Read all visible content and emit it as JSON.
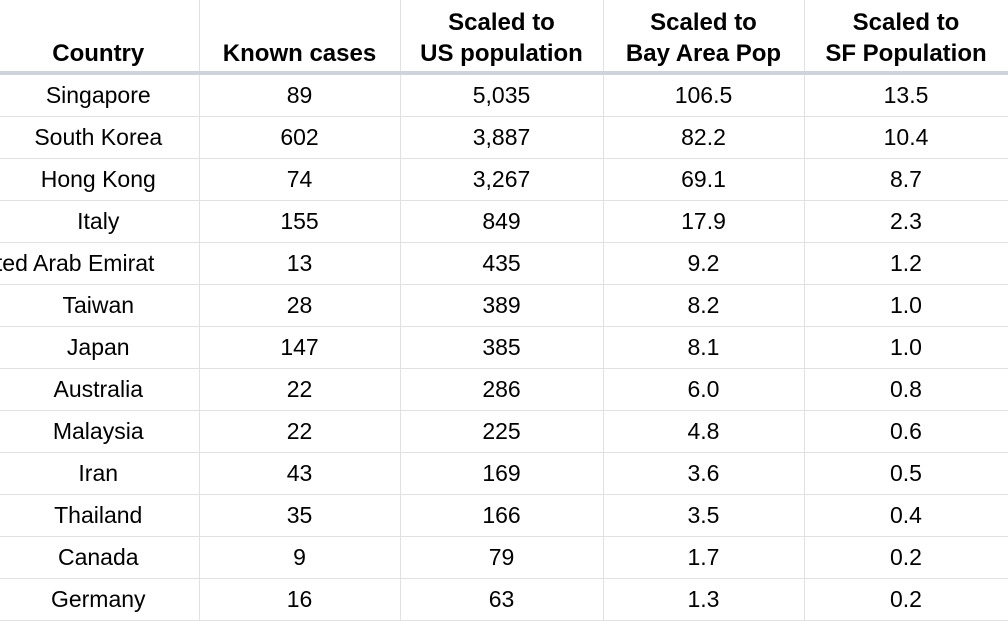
{
  "headers": [
    {
      "lines": [
        "Country"
      ]
    },
    {
      "lines": [
        "Known cases"
      ]
    },
    {
      "lines": [
        "Scaled to",
        "US  population"
      ]
    },
    {
      "lines": [
        "Scaled to",
        "Bay Area Pop"
      ]
    },
    {
      "lines": [
        "Scaled to",
        "SF Population"
      ]
    }
  ],
  "rows": [
    {
      "country": "Singapore",
      "known_cases": "89",
      "us_scaled": "5,035",
      "bay_area_scaled": "106.5",
      "sf_scaled": "13.5"
    },
    {
      "country": "South Korea",
      "known_cases": "602",
      "us_scaled": "3,887",
      "bay_area_scaled": "82.2",
      "sf_scaled": "10.4"
    },
    {
      "country": "Hong Kong",
      "known_cases": "74",
      "us_scaled": "3,267",
      "bay_area_scaled": "69.1",
      "sf_scaled": "8.7"
    },
    {
      "country": "Italy",
      "known_cases": "155",
      "us_scaled": "849",
      "bay_area_scaled": "17.9",
      "sf_scaled": "2.3"
    },
    {
      "country": "nited Arab Emirat",
      "known_cases": "13",
      "us_scaled": "435",
      "bay_area_scaled": "9.2",
      "sf_scaled": "1.2",
      "overflow": true
    },
    {
      "country": "Taiwan",
      "known_cases": "28",
      "us_scaled": "389",
      "bay_area_scaled": "8.2",
      "sf_scaled": "1.0"
    },
    {
      "country": "Japan",
      "known_cases": "147",
      "us_scaled": "385",
      "bay_area_scaled": "8.1",
      "sf_scaled": "1.0"
    },
    {
      "country": "Australia",
      "known_cases": "22",
      "us_scaled": "286",
      "bay_area_scaled": "6.0",
      "sf_scaled": "0.8"
    },
    {
      "country": "Malaysia",
      "known_cases": "22",
      "us_scaled": "225",
      "bay_area_scaled": "4.8",
      "sf_scaled": "0.6"
    },
    {
      "country": "Iran",
      "known_cases": "43",
      "us_scaled": "169",
      "bay_area_scaled": "3.6",
      "sf_scaled": "0.5"
    },
    {
      "country": "Thailand",
      "known_cases": "35",
      "us_scaled": "166",
      "bay_area_scaled": "3.5",
      "sf_scaled": "0.4"
    },
    {
      "country": "Canada",
      "known_cases": "9",
      "us_scaled": "79",
      "bay_area_scaled": "1.7",
      "sf_scaled": "0.2"
    },
    {
      "country": "Germany",
      "known_cases": "16",
      "us_scaled": "63",
      "bay_area_scaled": "1.3",
      "sf_scaled": "0.2"
    }
  ]
}
